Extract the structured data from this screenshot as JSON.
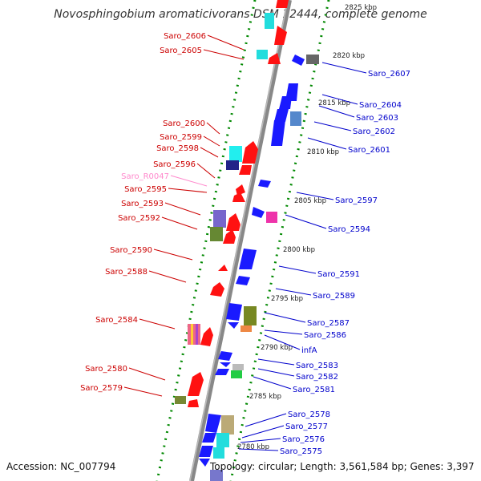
{
  "title": "Novosphingobium aromaticivorans DSM 12444, complete genome",
  "accession": "Accession: NC_007794",
  "topology": "Topology: circular; Length: 3,561,584 bp; Genes: 3,397",
  "colors": {
    "left_labels": "#cc0000",
    "right_labels": "#0000cc",
    "rna_label": "#ff88cc",
    "backbone": "#888888",
    "ticks": "#008800"
  },
  "kbp_ticks": [
    "2825 kbp",
    "2820 kbp",
    "2815 kbp",
    "2810 kbp",
    "2805 kbp",
    "2800 kbp",
    "2795 kbp",
    "2790 kbp",
    "2785 kbp",
    "2780 kbp"
  ],
  "left_labels": [
    "Saro_2606",
    "Saro_2605",
    "Saro_2600",
    "Saro_2599",
    "Saro_2598",
    "Saro_2596",
    "Saro_R0047",
    "Saro_2595",
    "Saro_2593",
    "Saro_2592",
    "Saro_2590",
    "Saro_2588",
    "Saro_2584",
    "Saro_2580",
    "Saro_2579"
  ],
  "right_labels": [
    "Saro_2607",
    "Saro_2604",
    "Saro_2603",
    "Saro_2602",
    "Saro_2601",
    "Saro_2597",
    "Saro_2594",
    "Saro_2591",
    "Saro_2589",
    "Saro_2587",
    "Saro_2586",
    "infA",
    "Saro_2583",
    "Saro_2582",
    "Saro_2581",
    "Saro_2578",
    "Saro_2577",
    "Saro_2576",
    "Saro_2575"
  ]
}
